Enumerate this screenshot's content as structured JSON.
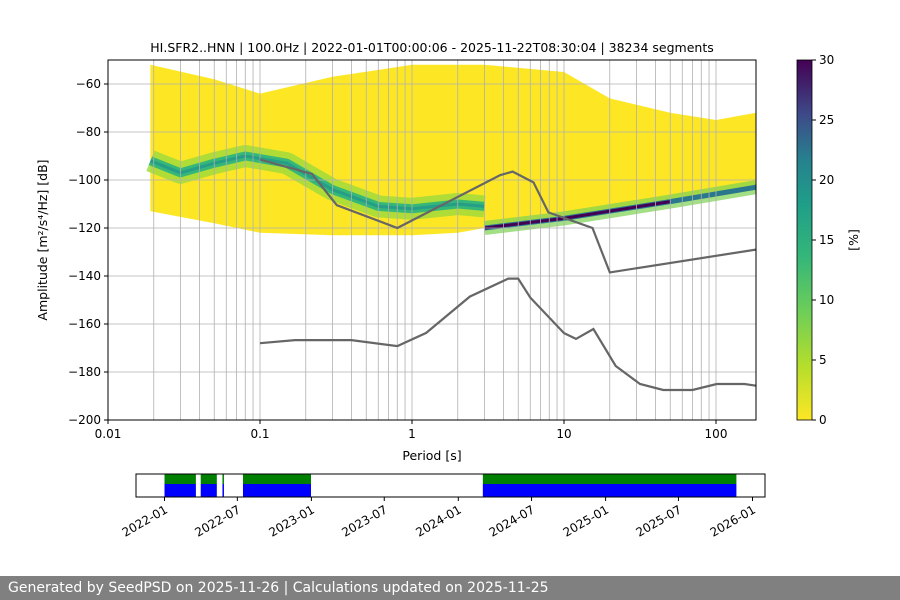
{
  "chart_data": {
    "type": "heatmap",
    "title": "HI.SFR2..HNN | 100.0Hz | 2022-01-01T00:00:06 - 2025-11-22T08:30:04 | 38234 segments",
    "xlabel": "Period [s]",
    "ylabel": "Amplitude [m²/s⁴/Hz] [dB]",
    "x_scale": "log",
    "xlim": [
      0.01,
      183
    ],
    "ylim": [
      -200,
      -50
    ],
    "x_ticks": [
      "0.01",
      "0.1",
      "1",
      "10",
      "100"
    ],
    "x_tick_values": [
      0.01,
      0.1,
      1,
      10,
      100
    ],
    "y_ticks": [
      "−200",
      "−180",
      "−160",
      "−140",
      "−120",
      "−100",
      "−80",
      "−60"
    ],
    "y_tick_values": [
      -200,
      -180,
      -160,
      -140,
      -120,
      -100,
      -80,
      -60
    ],
    "grid": true,
    "colormap": "viridis_r",
    "colorbar": {
      "label": "[%]",
      "range": [
        0,
        30
      ],
      "ticks": [
        "0",
        "5",
        "10",
        "15",
        "20",
        "25",
        "30"
      ],
      "tick_values": [
        0,
        5,
        10,
        15,
        20,
        25,
        30
      ]
    },
    "ppsd_upper_envelope": [
      [
        0.019,
        -52
      ],
      [
        0.05,
        -58
      ],
      [
        0.1,
        -64
      ],
      [
        0.3,
        -57
      ],
      [
        1,
        -52
      ],
      [
        3,
        -52
      ],
      [
        10,
        -55
      ],
      [
        20,
        -66
      ],
      [
        50,
        -72
      ],
      [
        100,
        -75
      ],
      [
        183,
        -72
      ]
    ],
    "ppsd_lower_envelope": [
      [
        0.019,
        -113
      ],
      [
        0.05,
        -118
      ],
      [
        0.1,
        -122
      ],
      [
        0.3,
        -123
      ],
      [
        1,
        -123
      ],
      [
        2,
        -122
      ],
      [
        3,
        -120
      ],
      [
        10,
        -117
      ],
      [
        30,
        -112
      ],
      [
        100,
        -107
      ],
      [
        183,
        -104
      ]
    ],
    "ppsd_mode": [
      [
        0.019,
        -92
      ],
      [
        0.03,
        -97
      ],
      [
        0.05,
        -93
      ],
      [
        0.08,
        -90
      ],
      [
        0.15,
        -93
      ],
      [
        0.3,
        -104
      ],
      [
        0.6,
        -111
      ],
      [
        1,
        -112
      ],
      [
        2,
        -110
      ],
      [
        3,
        -111
      ]
    ],
    "ppsd_mode_long": [
      [
        3,
        -120
      ],
      [
        10,
        -116
      ],
      [
        50,
        -109
      ],
      [
        183,
        -103
      ]
    ],
    "noise_models": [
      {
        "points": [
          [
            0.1,
            -91.5
          ],
          [
            0.22,
            -97.5
          ],
          [
            0.32,
            -110.5
          ],
          [
            0.8,
            -120
          ],
          [
            3.8,
            -98
          ],
          [
            4.6,
            -96.5
          ],
          [
            6.3,
            -101
          ],
          [
            7.9,
            -113.5
          ],
          [
            15.4,
            -120
          ],
          [
            20,
            -138.5
          ],
          [
            183,
            -129
          ]
        ]
      },
      {
        "points": [
          [
            0.1,
            -168
          ],
          [
            0.17,
            -166.7
          ],
          [
            0.4,
            -166.7
          ],
          [
            0.8,
            -169.2
          ],
          [
            1.24,
            -163.7
          ],
          [
            2.4,
            -148.6
          ],
          [
            4.3,
            -141.1
          ],
          [
            5,
            -141.1
          ],
          [
            6,
            -149
          ],
          [
            10,
            -163.8
          ],
          [
            12,
            -166.2
          ],
          [
            15.6,
            -162.1
          ],
          [
            21.9,
            -177.5
          ],
          [
            31.6,
            -185
          ],
          [
            45,
            -187.5
          ],
          [
            70,
            -187.5
          ],
          [
            101,
            -185
          ],
          [
            154,
            -185
          ],
          [
            183,
            -185.7
          ]
        ]
      }
    ],
    "colors": {
      "noise_model": "#666666",
      "grid": "#b0b0b0",
      "coverage_data": "#0000ff",
      "coverage_processed": "#008000"
    }
  },
  "coverage": {
    "x_ticks": [
      "2022-01",
      "2022-07",
      "2023-01",
      "2023-07",
      "2024-01",
      "2024-07",
      "2025-01",
      "2025-07",
      "2026-01"
    ],
    "segments": [
      [
        "2022-01-01",
        "2022-03-20"
      ],
      [
        "2022-04-01",
        "2022-05-11"
      ],
      [
        "2022-05-25",
        "2022-05-27"
      ],
      [
        "2022-07-15",
        "2022-12-31"
      ],
      [
        "2024-03-02",
        "2025-11-22"
      ]
    ]
  },
  "footer": "Generated by SeedPSD on 2025-11-26 | Calculations updated on 2025-11-25"
}
